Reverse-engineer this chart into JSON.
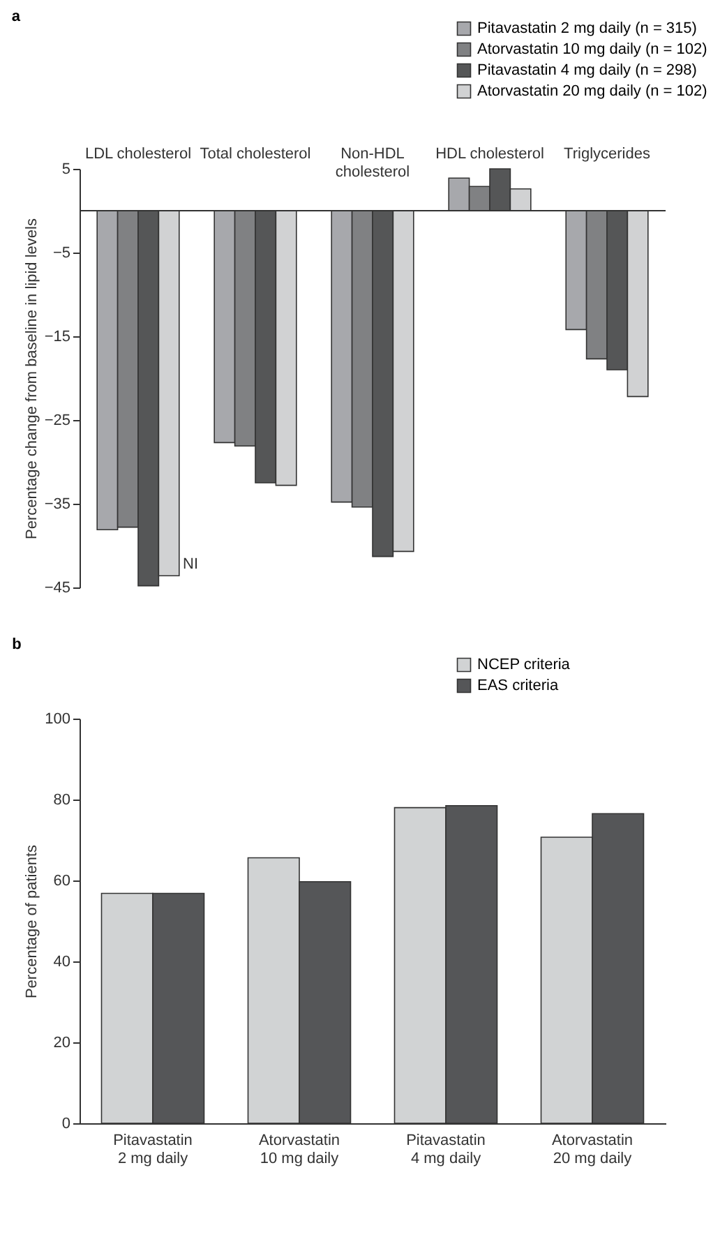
{
  "chart_data": [
    {
      "type": "bar",
      "title": "a",
      "ylabel": "Percentage change from baseline in lipid levels",
      "categories": [
        "LDL cholesterol",
        "Total cholesterol",
        "Non-HDL cholesterol",
        "HDL cholesterol",
        "Triglycerides"
      ],
      "series": [
        {
          "name": "Pitavastatin 2 mg daily (n = 315)",
          "color": "#a7a8ac",
          "values": [
            -38.1,
            -27.7,
            -34.8,
            3.9,
            -14.2
          ]
        },
        {
          "name": "Atorvastatin 10 mg daily (n = 102)",
          "color": "#808183",
          "values": [
            -37.8,
            -28.1,
            -35.4,
            2.9,
            -17.7
          ]
        },
        {
          "name": "Pitavastatin 4 mg daily (n = 298)",
          "color": "#555657",
          "values": [
            -44.8,
            -32.5,
            -41.3,
            5.0,
            -19.0
          ]
        },
        {
          "name": "Atorvastatin 20 mg daily (n = 102)",
          "color": "#d1d2d3",
          "values": [
            -43.6,
            -32.8,
            -40.7,
            2.6,
            -22.2
          ]
        }
      ],
      "ylim": [
        -45,
        5
      ],
      "yticks": [
        5,
        -5,
        -15,
        -25,
        -35,
        -45
      ],
      "legend": "top right",
      "annotations": [
        {
          "text": "NI",
          "x": "LDL cholesterol",
          "y": -43.6
        }
      ]
    },
    {
      "type": "bar",
      "title": "b",
      "ylabel": "Percentage of patients",
      "categories": [
        "Pitavastatin 2 mg daily",
        "Atorvastatin 10 mg daily",
        "Pitavastatin 4 mg daily",
        "Atorvastatin 20 mg daily"
      ],
      "series": [
        {
          "name": "NCEP criteria",
          "color": "#d1d3d4",
          "values": [
            56.8,
            65.6,
            78.0,
            70.7
          ]
        },
        {
          "name": "EAS criteria",
          "color": "#555658",
          "values": [
            56.8,
            59.7,
            78.5,
            76.5
          ]
        }
      ],
      "ylim": [
        0,
        100
      ],
      "yticks": [
        0,
        20,
        40,
        60,
        80,
        100
      ],
      "legend": "top right"
    }
  ]
}
